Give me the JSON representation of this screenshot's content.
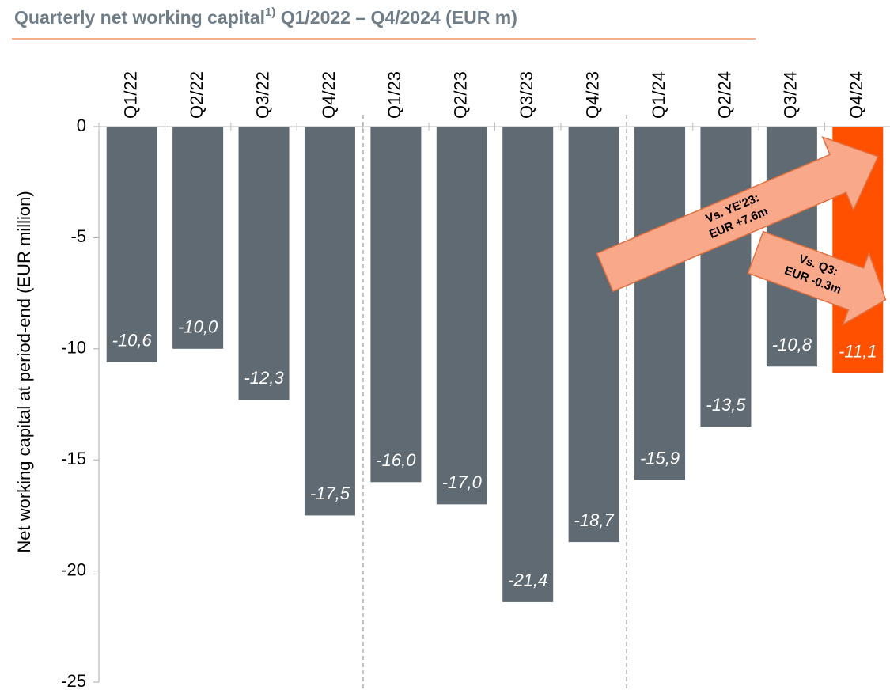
{
  "chart_data": {
    "type": "bar",
    "title": "Quarterly net working capital",
    "title_superscript": "1)",
    "title_suffix": " Q1/2022 – Q4/2024 (EUR m)",
    "y_label": "Net working capital at period-end (EUR million)",
    "categories": [
      "Q1/22",
      "Q2/22",
      "Q3/22",
      "Q4/22",
      "Q1/23",
      "Q2/23",
      "Q3/23",
      "Q4/23",
      "Q1/24",
      "Q2/24",
      "Q3/24",
      "Q4/24"
    ],
    "values": [
      -10.6,
      -10.0,
      -12.3,
      -17.5,
      -16.0,
      -17.0,
      -21.4,
      -18.7,
      -15.9,
      -13.5,
      -10.8,
      -11.1
    ],
    "value_labels": [
      "-10,6",
      "-10,0",
      "-12,3",
      "-17,5",
      "-16,0",
      "-17,0",
      "-21,4",
      "-18,7",
      "-15,9",
      "-13,5",
      "-10,8",
      "-11,1"
    ],
    "colors": [
      "#5f6a72",
      "#5f6a72",
      "#5f6a72",
      "#5f6a72",
      "#5f6a72",
      "#5f6a72",
      "#5f6a72",
      "#5f6a72",
      "#5f6a72",
      "#5f6a72",
      "#5f6a72",
      "#ff5000"
    ],
    "ylim": [
      -25,
      0
    ],
    "yticks": [
      0,
      -5,
      -10,
      -15,
      -20,
      -25
    ],
    "annotations": [
      {
        "lines": [
          "Vs. YE'23:",
          "EUR +7.6m"
        ]
      },
      {
        "lines": [
          "Vs. Q3:",
          "EUR -0.3m"
        ]
      }
    ]
  }
}
